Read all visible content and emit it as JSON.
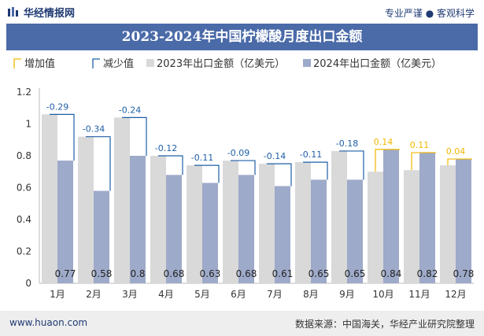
{
  "header": {
    "brand": "华经情报网",
    "tagline": "专业严谨 ● 客观科学"
  },
  "footer": {
    "url": "www.huaon.com",
    "source": "数据来源：中国海关，华经产业研究院整理"
  },
  "colors": {
    "title_bg": "#4a6aa8",
    "bar_2023": "#d9d9d9",
    "bar_2024": "#9eaac9",
    "increase": "#f2b700",
    "decrease": "#1f5fa8",
    "brand": "#1f3a72"
  },
  "chart_data": {
    "type": "bar",
    "title": "2023-2024年中国柠檬酸月度出口金额",
    "categories": [
      "1月",
      "2月",
      "3月",
      "4月",
      "5月",
      "6月",
      "7月",
      "8月",
      "9月",
      "10月",
      "11月",
      "12月"
    ],
    "series": [
      {
        "name": "2023年出口金额（亿美元）",
        "values": [
          1.06,
          0.92,
          1.04,
          0.8,
          0.74,
          0.77,
          0.75,
          0.76,
          0.83,
          0.7,
          0.71,
          0.74
        ]
      },
      {
        "name": "2024年出口金额（亿美元）",
        "values": [
          0.77,
          0.58,
          0.8,
          0.68,
          0.63,
          0.68,
          0.61,
          0.65,
          0.65,
          0.84,
          0.82,
          0.78
        ]
      }
    ],
    "change": [
      "-0.29",
      "-0.34",
      "-0.24",
      "-0.12",
      "-0.11",
      "-0.09",
      "-0.14",
      "-0.11",
      "-0.18",
      "0.14",
      "0.11",
      "0.04"
    ],
    "change_values": [
      -0.29,
      -0.34,
      -0.24,
      -0.12,
      -0.11,
      -0.09,
      -0.14,
      -0.11,
      -0.18,
      0.14,
      0.11,
      0.04
    ],
    "data_labels_2024": [
      "0.77",
      "0.58",
      "0.8",
      "0.68",
      "0.63",
      "0.68",
      "0.61",
      "0.65",
      "0.65",
      "0.84",
      "0.82",
      "0.78"
    ],
    "legend": [
      "增加值",
      "减少值",
      "2023年出口金额（亿美元）",
      "2024年出口金额（亿美元）"
    ],
    "legend_position": "top",
    "yticks": [
      "0",
      "0.2",
      "0.4",
      "0.6",
      "0.8",
      "1",
      "1.2"
    ],
    "ylim": [
      0,
      1.2
    ],
    "grid": false
  }
}
